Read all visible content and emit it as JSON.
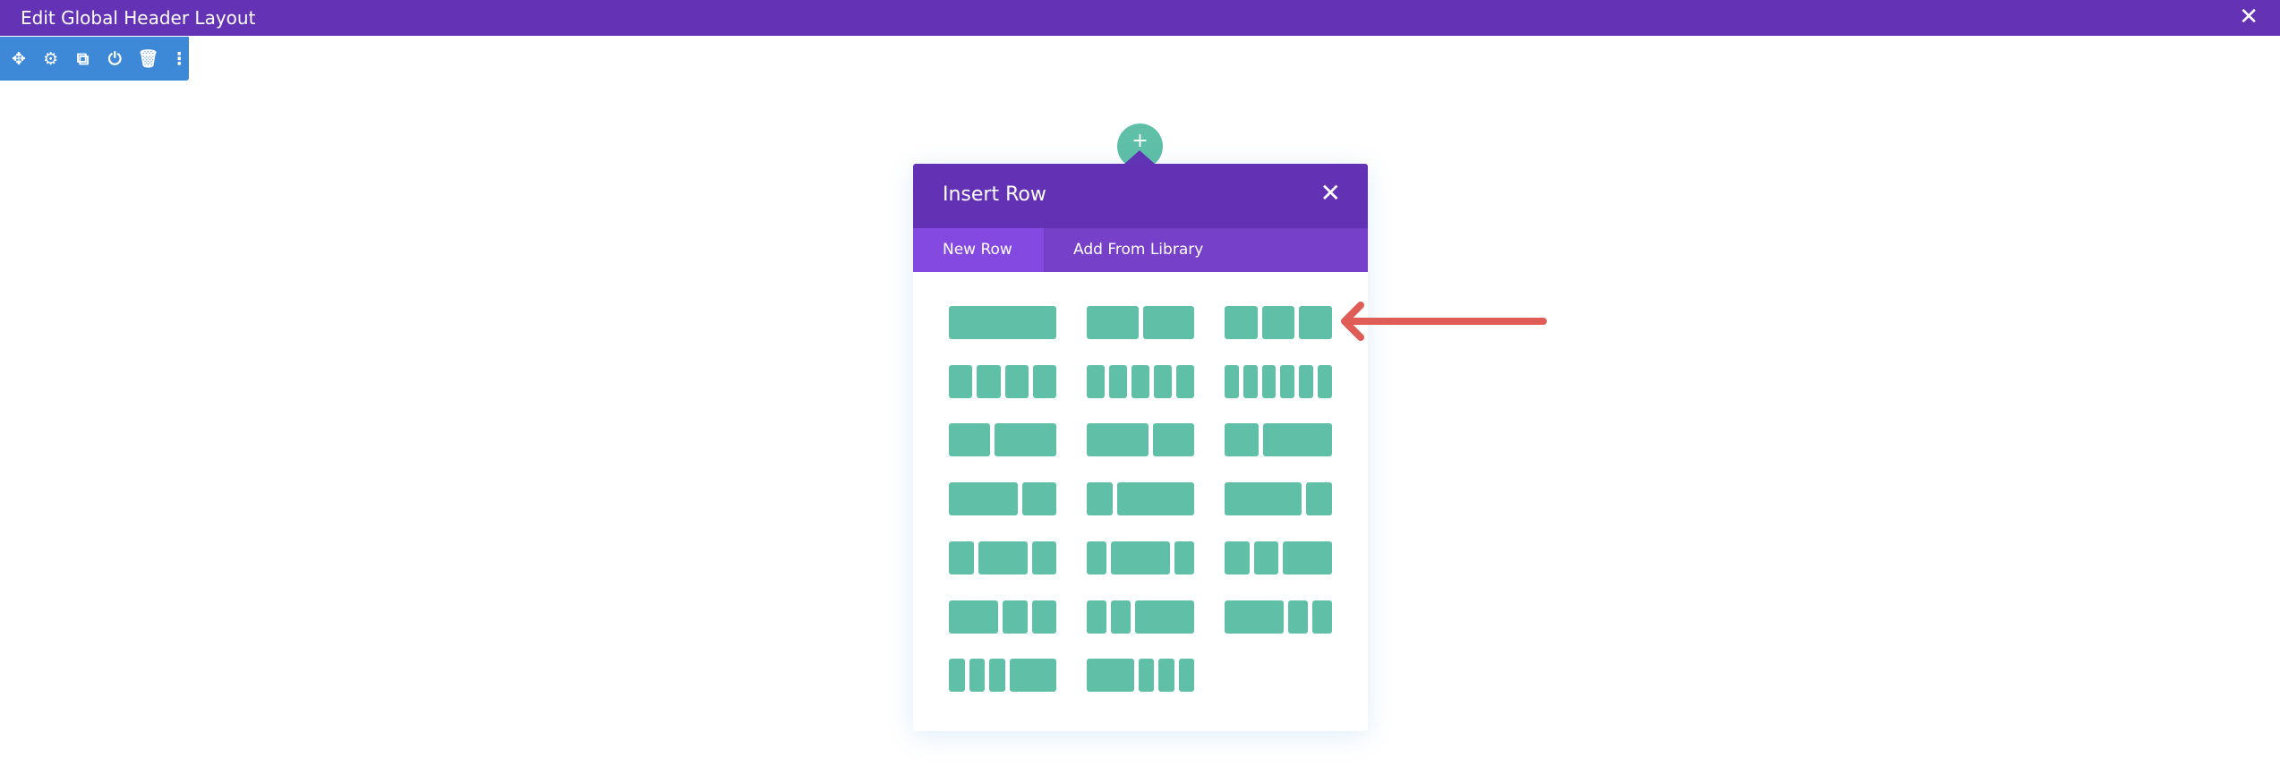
{
  "window": {
    "title": "Edit Global Header Layout",
    "close_icon": "close-icon"
  },
  "toolbar": {
    "icons": [
      "move-icon",
      "gear-icon",
      "duplicate-icon",
      "power-icon",
      "trash-icon",
      "more-vertical-icon"
    ]
  },
  "panel": {
    "title": "Insert Row",
    "tabs": [
      {
        "label": "New Row",
        "active": true
      },
      {
        "label": "Add From Library",
        "active": false
      }
    ],
    "layouts": [
      [
        1
      ],
      [
        1,
        1
      ],
      [
        1,
        1,
        1
      ],
      [
        1,
        1,
        1,
        1
      ],
      [
        1,
        1,
        1,
        1,
        1
      ],
      [
        1,
        1,
        1,
        1,
        1,
        1
      ],
      [
        2,
        3
      ],
      [
        3,
        2
      ],
      [
        1,
        2
      ],
      [
        2,
        1
      ],
      [
        1,
        3
      ],
      [
        3,
        1
      ],
      [
        1,
        2,
        1
      ],
      [
        1,
        3,
        1
      ],
      [
        1,
        1,
        2
      ],
      [
        2,
        1,
        1
      ],
      [
        1,
        1,
        3
      ],
      [
        3,
        1,
        1
      ],
      [
        1,
        1,
        1,
        3
      ],
      [
        3,
        1,
        1,
        1
      ]
    ]
  },
  "colors": {
    "header": "#6433b5",
    "toolbar": "#3e88d8",
    "layout_block": "#5fbfa7",
    "arrow": "#e05c57",
    "tab_active": "#8349e0"
  }
}
